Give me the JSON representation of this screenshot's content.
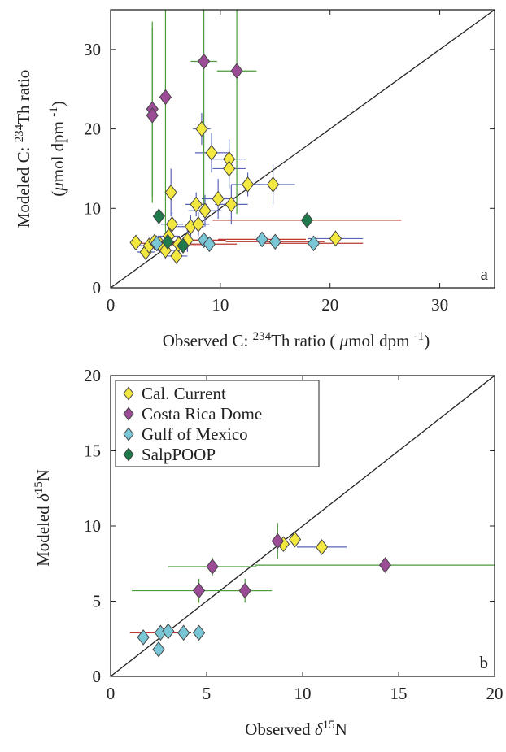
{
  "chart_data": [
    {
      "type": "scatter",
      "annotation": "a",
      "xlabel": [
        {
          "text": "Observed C:  "
        },
        {
          "text": "234",
          "sup": true
        },
        {
          "text": "Th ratio ( "
        },
        {
          "text": "μ",
          "italic": true
        },
        {
          "text": "mol dpm "
        },
        {
          "text": "-1",
          "sup": true
        },
        {
          "text": ")"
        }
      ],
      "ylabel": [
        [
          {
            "text": "Modeled C:  "
          },
          {
            "text": "234",
            "sup": true
          },
          {
            "text": "Th ratio"
          }
        ],
        [
          {
            "text": "("
          },
          {
            "text": "μ",
            "italic": true
          },
          {
            "text": "mol dpm "
          },
          {
            "text": "-1",
            "sup": true
          },
          {
            "text": ")"
          }
        ]
      ],
      "xlim": [
        0,
        35
      ],
      "ylim": [
        0,
        35
      ],
      "xticks": [
        0,
        10,
        20,
        30
      ],
      "yticks": [
        0,
        10,
        20,
        30
      ],
      "series": [
        {
          "name": "Cal. Current",
          "color": "#f3e840",
          "errcolor": "#5a63b8",
          "x": [
            2.3,
            3.2,
            3.5,
            4.0,
            4.5,
            5.0,
            5.3,
            5.5,
            5.6,
            6.0,
            6.2,
            7.0,
            7.3,
            7.8,
            8.0,
            8.3,
            8.6,
            9.2,
            9.8,
            10.8,
            10.8,
            11.0,
            12.5,
            14.8,
            20.5
          ],
          "y": [
            5.7,
            4.5,
            5.3,
            5.8,
            5.5,
            4.7,
            6.5,
            12.0,
            8.0,
            4.0,
            5.5,
            6.0,
            7.7,
            10.5,
            8.0,
            20.0,
            9.7,
            17.0,
            11.2,
            16.2,
            15.0,
            10.5,
            13.0,
            13.0,
            6.2
          ],
          "xerr": [
            null,
            0.8,
            0.8,
            null,
            1.0,
            0.8,
            1.0,
            null,
            1.0,
            1.0,
            1.2,
            1.0,
            1.2,
            1.0,
            1.0,
            0.8,
            1.5,
            1.5,
            1.5,
            1.5,
            1.5,
            1.5,
            1.5,
            2.0,
            2.5
          ],
          "yerr": [
            null,
            1.0,
            1.0,
            null,
            1.0,
            1.0,
            1.0,
            3.0,
            1.5,
            1.0,
            1.0,
            1.5,
            1.5,
            1.5,
            1.5,
            2.0,
            2.0,
            2.5,
            2.5,
            2.5,
            2.5,
            2.5,
            1.5,
            2.5,
            1.0
          ]
        },
        {
          "name": "Costa Rica Dome",
          "color": "#9c4c97",
          "errcolor": "#4c9a3a",
          "x": [
            3.8,
            3.8,
            5.0,
            8.5,
            11.5
          ],
          "y": [
            22.5,
            21.7,
            24.0,
            28.5,
            27.3
          ],
          "xerr": [
            null,
            null,
            null,
            1.2,
            1.8
          ],
          "yerr": [
            11.0,
            11.0,
            18.0,
            18.0,
            18.0
          ]
        },
        {
          "name": "Gulf of Mexico",
          "color": "#79c6d6",
          "errcolor": "#b8362e",
          "x": [
            4.2,
            8.5,
            9.0,
            13.8,
            15.0,
            18.5
          ],
          "y": [
            5.6,
            6.0,
            5.5,
            6.1,
            5.8,
            5.6
          ],
          "xerr": [
            1.5,
            2.0,
            2.5,
            4.0,
            4.5,
            4.5
          ],
          "yerr": [
            null,
            null,
            null,
            null,
            null,
            null
          ]
        },
        {
          "name": "SalpPOOP",
          "color": "#1e7a4a",
          "errcolor": "#b8362e",
          "x": [
            4.4,
            5.2,
            6.6,
            17.9
          ],
          "y": [
            9.0,
            5.8,
            5.3,
            8.5
          ],
          "xerr": [
            null,
            1.5,
            2.0,
            8.6
          ],
          "yerr": [
            null,
            null,
            null,
            null
          ]
        }
      ]
    },
    {
      "type": "scatter",
      "annotation": "b",
      "xlabel": [
        {
          "text": "Observed   "
        },
        {
          "text": "δ",
          "italic": true
        },
        {
          "text": "15",
          "sup": true
        },
        {
          "text": "N"
        }
      ],
      "ylabel": [
        [
          {
            "text": "Modeled  "
          },
          {
            "text": "δ",
            "italic": true
          },
          {
            "text": "15",
            "sup": true
          },
          {
            "text": "N"
          }
        ]
      ],
      "xlim": [
        0,
        20
      ],
      "ylim": [
        0,
        20
      ],
      "xticks": [
        0,
        5,
        10,
        15,
        20
      ],
      "yticks": [
        0,
        5,
        10,
        15,
        20
      ],
      "legend": "upper left",
      "series": [
        {
          "name": "Cal. Current",
          "color": "#f3e840",
          "errcolor": "#5a63b8",
          "x": [
            9.0,
            9.6,
            11.0
          ],
          "y": [
            8.8,
            9.1,
            8.6
          ],
          "xerr": [
            null,
            null,
            1.3
          ],
          "yerr": [
            null,
            null,
            null
          ]
        },
        {
          "name": "Costa Rica Dome",
          "color": "#9c4c97",
          "errcolor": "#4c9a3a",
          "x": [
            8.7,
            5.3,
            4.6,
            7.0,
            14.3
          ],
          "y": [
            9.0,
            7.3,
            5.7,
            5.7,
            7.4
          ],
          "xerr": [
            null,
            2.3,
            3.5,
            1.4,
            6.8
          ],
          "yerr": [
            1.2,
            0.6,
            0.8,
            0.8,
            0.5
          ]
        },
        {
          "name": "Gulf of Mexico",
          "color": "#79c6d6",
          "errcolor": "#b8362e",
          "x": [
            1.7,
            2.5,
            2.6,
            3.0,
            3.8,
            4.6
          ],
          "y": [
            2.6,
            1.8,
            2.9,
            3.0,
            2.9,
            2.9
          ],
          "xerr": [
            null,
            null,
            1.6,
            null,
            null,
            null
          ],
          "yerr": [
            null,
            null,
            null,
            null,
            null,
            null
          ]
        },
        {
          "name": "SalpPOOP",
          "color": "#1e7a4a",
          "errcolor": "#b8362e",
          "x": [],
          "y": [],
          "xerr": [],
          "yerr": []
        }
      ]
    }
  ]
}
